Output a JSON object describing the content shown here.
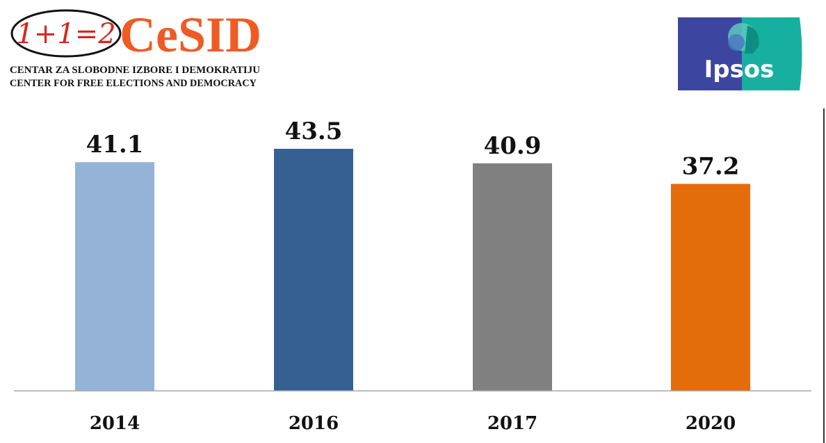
{
  "logos": {
    "cesid": {
      "badge_text": "1+1=2",
      "brand": "CeSID",
      "line1": "CENTAR ZA SLOBODNE IZBORE I DEMOKRATIJU",
      "line2": "CENTER FOR FREE ELECTIONS AND DEMOCRACY",
      "brand_color": "#f05a24"
    },
    "ipsos": {
      "brand": "Ipsos",
      "left_color": "#3c46a0",
      "right_color": "#17b0a0"
    }
  },
  "chart_data": {
    "type": "bar",
    "categories": [
      "2014",
      "2016",
      "2017",
      "2020"
    ],
    "values": [
      41.1,
      43.5,
      40.9,
      37.2
    ],
    "value_labels": [
      "41.1",
      "43.5",
      "40.9",
      "37.2"
    ],
    "colors": [
      "#95b3d7",
      "#366092",
      "#808080",
      "#e46c0a"
    ],
    "ylim": [
      0,
      50
    ],
    "title": "",
    "xlabel": "",
    "ylabel": "",
    "grid": false,
    "legend": "none"
  }
}
